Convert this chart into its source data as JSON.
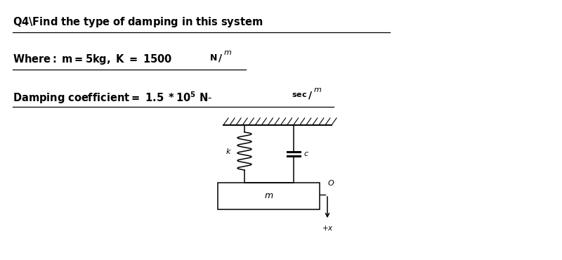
{
  "bg_color": "#ffffff",
  "text_color": "#000000",
  "line1": "Q4\\Find the type of damping in this system",
  "line2_pre": "Where: m=5kg, ",
  "line3_pre": "Damping coefficient= 1.5 ",
  "fig_width": 8.0,
  "fig_height": 3.7,
  "dpi": 100
}
